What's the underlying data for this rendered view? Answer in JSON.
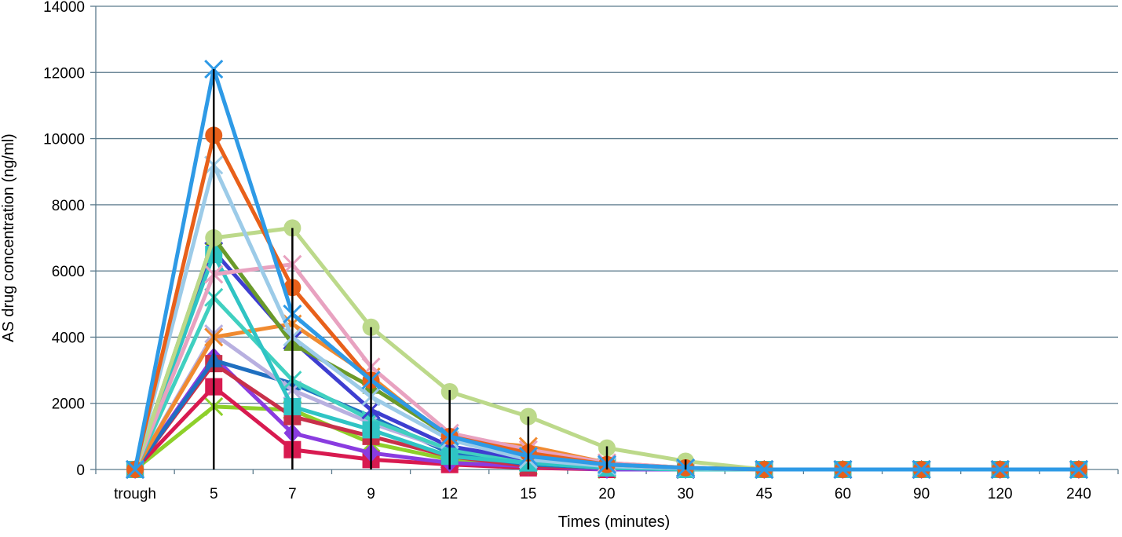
{
  "chart_data": {
    "type": "line",
    "title": "",
    "xlabel": "Times (minutes)",
    "ylabel": "AS drug concentration (ng/ml)",
    "categories": [
      "trough",
      "5",
      "7",
      "9",
      "12",
      "15",
      "20",
      "30",
      "45",
      "60",
      "90",
      "120",
      "240"
    ],
    "ylim": [
      0,
      14000
    ],
    "yticks": [
      0,
      2000,
      4000,
      6000,
      8000,
      10000,
      12000,
      14000
    ],
    "grid": true,
    "legend": "none",
    "error_bar_ranges": [
      null,
      [
        0,
        12100
      ],
      [
        0,
        7300
      ],
      [
        0,
        4300
      ],
      [
        0,
        2400
      ],
      [
        0,
        1600
      ],
      [
        0,
        700
      ],
      [
        0,
        300
      ],
      null,
      null,
      null,
      null,
      null
    ],
    "series": [
      {
        "color": "#2e9ae6",
        "marker": "x",
        "values": [
          0,
          12100,
          4700,
          2700,
          1000,
          400,
          150,
          50,
          0,
          0,
          0,
          0,
          0
        ]
      },
      {
        "color": "#e8601a",
        "marker": "circle",
        "values": [
          0,
          10100,
          5500,
          2700,
          1000,
          500,
          150,
          50,
          0,
          0,
          0,
          0,
          0
        ]
      },
      {
        "color": "#9ccbe8",
        "marker": "x",
        "values": [
          0,
          9200,
          4000,
          2200,
          900,
          300,
          100,
          30,
          0,
          0,
          0,
          0,
          0
        ]
      },
      {
        "color": "#bcd98a",
        "marker": "circle",
        "values": [
          0,
          7000,
          7300,
          4300,
          2350,
          1600,
          650,
          250,
          0,
          0,
          0,
          0,
          0
        ]
      },
      {
        "color": "#e8a2c0",
        "marker": "x",
        "values": [
          0,
          5900,
          6200,
          3100,
          1100,
          600,
          200,
          50,
          0,
          0,
          0,
          0,
          0
        ]
      },
      {
        "color": "#6a9a2a",
        "marker": "triangle",
        "values": [
          0,
          7000,
          3800,
          2500,
          1000,
          500,
          150,
          50,
          0,
          0,
          0,
          0,
          0
        ]
      },
      {
        "color": "#2fc4c4",
        "marker": "square",
        "values": [
          0,
          6500,
          1900,
          1200,
          400,
          200,
          50,
          0,
          0,
          0,
          0,
          0,
          0
        ]
      },
      {
        "color": "#3e3ed0",
        "marker": "x",
        "values": [
          0,
          6600,
          3900,
          1800,
          700,
          300,
          100,
          0,
          0,
          0,
          0,
          0,
          0
        ]
      },
      {
        "color": "#40d0c0",
        "marker": "x",
        "values": [
          0,
          5200,
          2700,
          1500,
          600,
          200,
          50,
          0,
          0,
          0,
          0,
          0,
          0
        ]
      },
      {
        "color": "#f08a30",
        "marker": "x",
        "values": [
          0,
          4000,
          4400,
          2800,
          900,
          700,
          200,
          50,
          0,
          0,
          0,
          0,
          0
        ]
      },
      {
        "color": "#b8b0e0",
        "marker": "x",
        "values": [
          0,
          4100,
          2400,
          1400,
          600,
          300,
          100,
          0,
          0,
          0,
          0,
          0,
          0
        ]
      },
      {
        "color": "#1f6fc0",
        "marker": "triangle",
        "values": [
          0,
          3300,
          2600,
          1600,
          500,
          150,
          50,
          0,
          0,
          0,
          0,
          0,
          0
        ]
      },
      {
        "color": "#c8304a",
        "marker": "square",
        "values": [
          0,
          3200,
          1600,
          1000,
          400,
          100,
          50,
          0,
          0,
          0,
          0,
          0,
          0
        ]
      },
      {
        "color": "#8a3ce0",
        "marker": "diamond",
        "values": [
          0,
          3400,
          1100,
          500,
          200,
          100,
          0,
          0,
          0,
          0,
          0,
          0,
          0
        ]
      },
      {
        "color": "#d81a50",
        "marker": "square",
        "values": [
          0,
          2500,
          600,
          300,
          150,
          50,
          0,
          0,
          0,
          0,
          0,
          0,
          0
        ]
      },
      {
        "color": "#8ed02a",
        "marker": "x",
        "values": [
          0,
          1900,
          1800,
          800,
          300,
          100,
          0,
          0,
          0,
          0,
          0,
          0,
          0
        ]
      }
    ]
  }
}
